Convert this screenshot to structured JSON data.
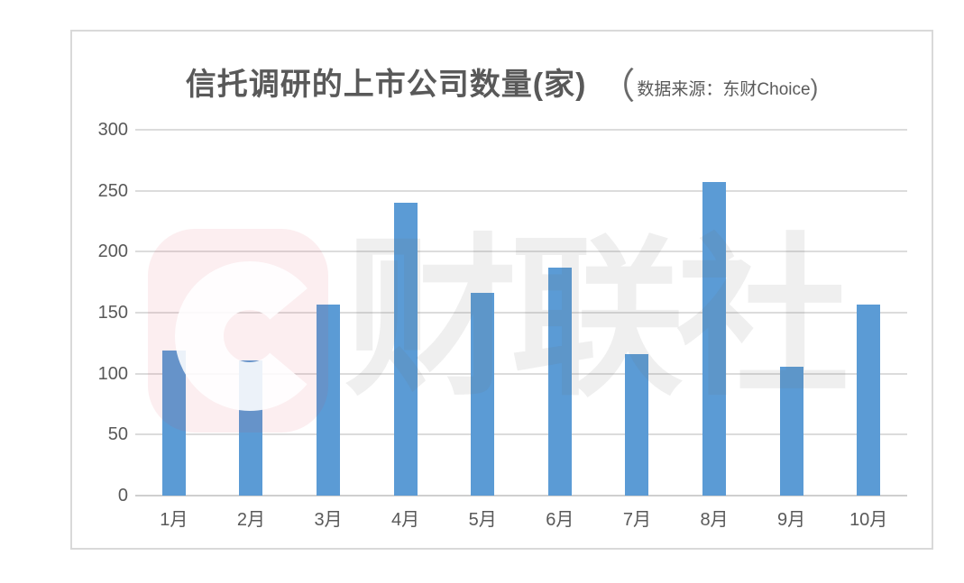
{
  "chart_data": {
    "type": "bar",
    "title": "信托调研的上市公司数量(家)",
    "source_note": {
      "open_paren": "（",
      "text": "数据来源：东财Choice",
      "close_paren": ")"
    },
    "categories": [
      "1月",
      "2月",
      "3月",
      "4月",
      "5月",
      "6月",
      "7月",
      "8月",
      "9月",
      "10月"
    ],
    "values": [
      119,
      111,
      157,
      240,
      166,
      187,
      116,
      257,
      106,
      157
    ],
    "xlabel": "",
    "ylabel": "",
    "ylim": [
      0,
      300
    ],
    "ytick_step": 50,
    "yticks": [
      0,
      50,
      100,
      150,
      200,
      250,
      300
    ],
    "grid": "horizontal",
    "legend": "none",
    "bar_color": "#5B9BD5",
    "gridline_color": "#dcdcdc",
    "title_color": "#595959",
    "watermark": {
      "logo_letter": "C",
      "text": "财联社"
    }
  }
}
